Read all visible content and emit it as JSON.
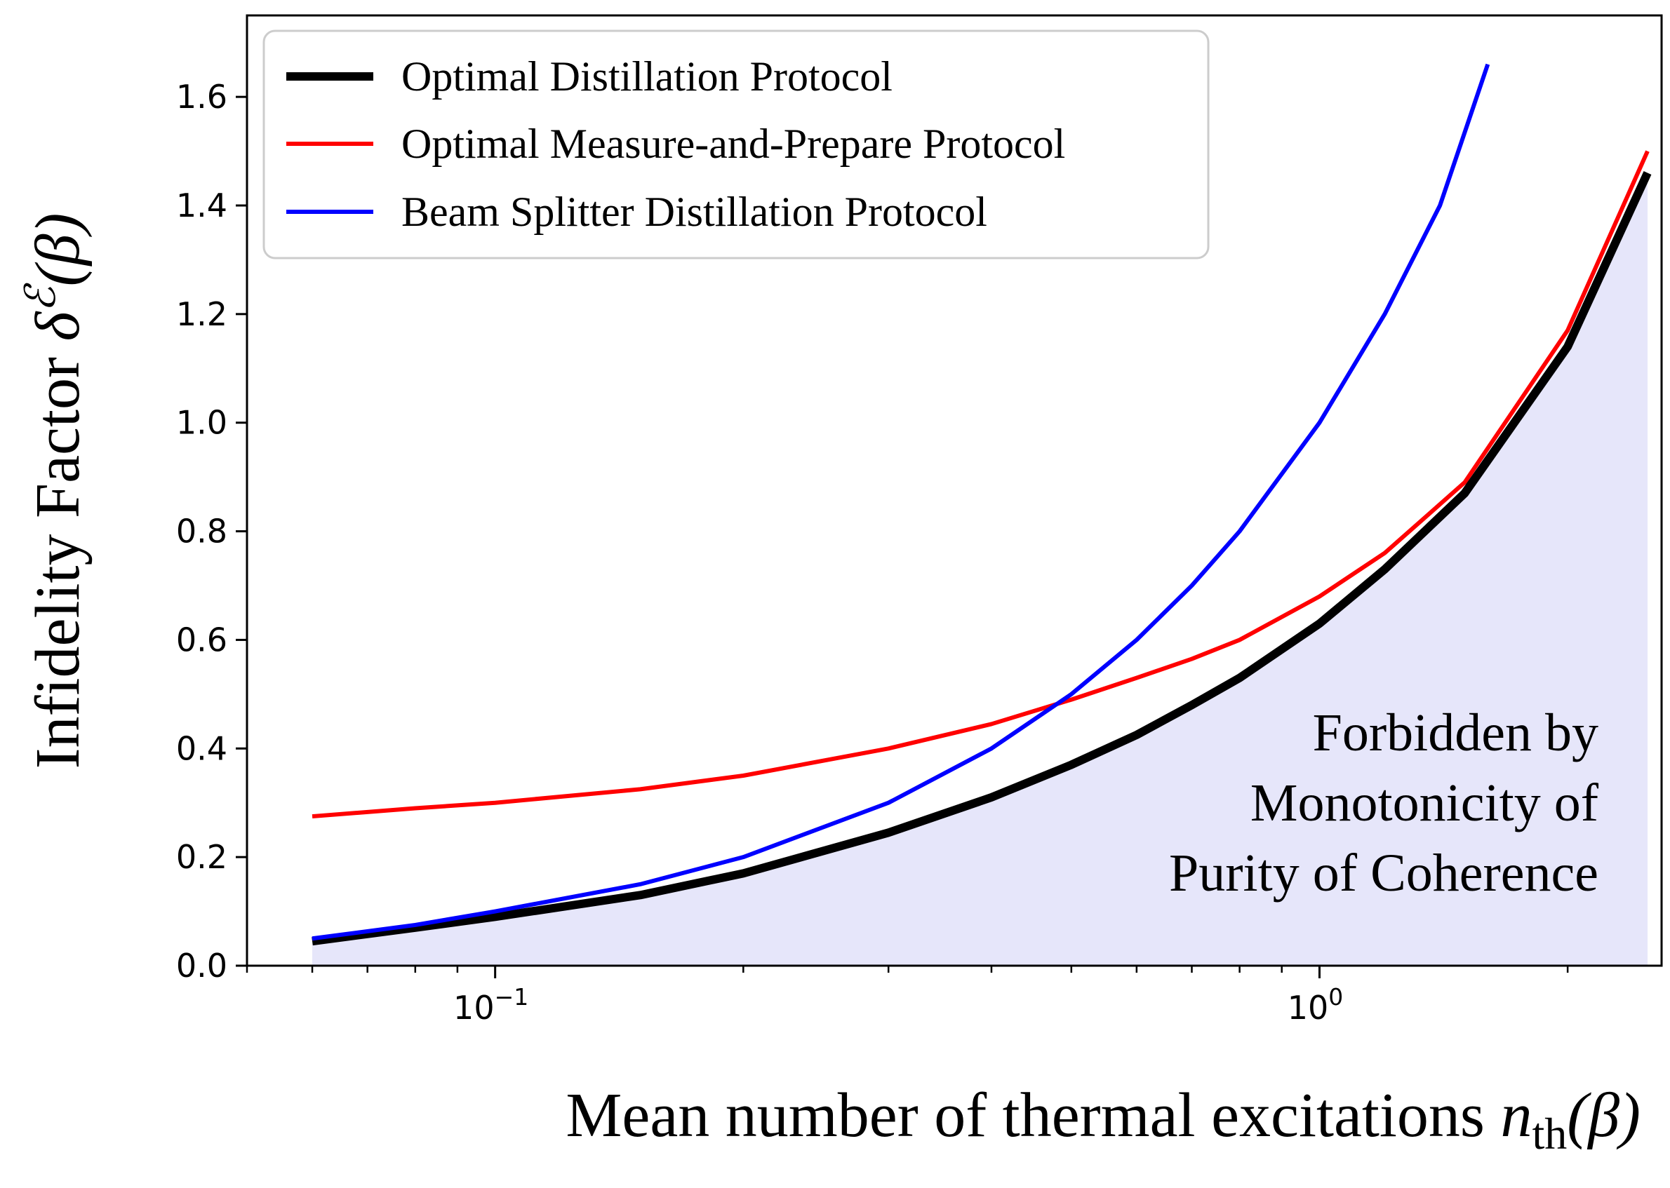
{
  "chart_data": {
    "type": "line",
    "xscale": "log",
    "xlim": [
      0.05,
      2.6
    ],
    "ylim": [
      0.0,
      1.75
    ],
    "xlabel": "Mean number of thermal excitations",
    "xlabel_math": "n",
    "xlabel_math_sub": "th",
    "xlabel_math_arg": "(β)",
    "ylabel": "Infidelity Factor",
    "ylabel_math": "δ",
    "ylabel_math_sup": "ℰ",
    "ylabel_math_arg": "(β)",
    "yticks": [
      "0.0",
      "0.2",
      "0.4",
      "0.6",
      "0.8",
      "1.0",
      "1.2",
      "1.4",
      "1.6"
    ],
    "xticks": [
      {
        "value": 0.1,
        "base": "10",
        "exp": "−1"
      },
      {
        "value": 1.0,
        "base": "10",
        "exp": "0"
      }
    ],
    "legend_location": "top-left",
    "series": [
      {
        "name": "Optimal Distillation Protocol",
        "color": "#000000",
        "weight": "thick",
        "x": [
          0.06,
          0.08,
          0.1,
          0.15,
          0.2,
          0.3,
          0.4,
          0.5,
          0.6,
          0.7,
          0.8,
          1.0,
          1.2,
          1.5,
          2.0,
          2.5
        ],
        "y": [
          0.045,
          0.07,
          0.09,
          0.13,
          0.17,
          0.245,
          0.31,
          0.37,
          0.425,
          0.48,
          0.53,
          0.63,
          0.73,
          0.87,
          1.14,
          1.46
        ]
      },
      {
        "name": "Optimal Measure-and-Prepare Protocol",
        "color": "#ff0000",
        "weight": "normal",
        "x": [
          0.06,
          0.08,
          0.1,
          0.15,
          0.2,
          0.3,
          0.4,
          0.5,
          0.6,
          0.7,
          0.8,
          1.0,
          1.2,
          1.5,
          2.0,
          2.5
        ],
        "y": [
          0.275,
          0.29,
          0.3,
          0.325,
          0.35,
          0.4,
          0.445,
          0.49,
          0.53,
          0.565,
          0.6,
          0.68,
          0.76,
          0.89,
          1.17,
          1.5
        ]
      },
      {
        "name": "Beam Splitter Distillation Protocol",
        "color": "#0000ff",
        "weight": "normal",
        "x": [
          0.06,
          0.08,
          0.1,
          0.15,
          0.2,
          0.3,
          0.4,
          0.5,
          0.6,
          0.7,
          0.8,
          1.0,
          1.2,
          1.4,
          1.6
        ],
        "y": [
          0.05,
          0.075,
          0.1,
          0.15,
          0.2,
          0.3,
          0.4,
          0.5,
          0.6,
          0.7,
          0.8,
          1.0,
          1.2,
          1.4,
          1.66
        ]
      }
    ],
    "shaded_region": {
      "label": "Forbidden by Monotonicity of Purity of Coherence",
      "bound_series": "Optimal Distillation Protocol",
      "color": "#e6e6fa"
    },
    "annotation_lines": [
      "Forbidden by",
      "Monotonicity of",
      "Purity of Coherence"
    ]
  }
}
